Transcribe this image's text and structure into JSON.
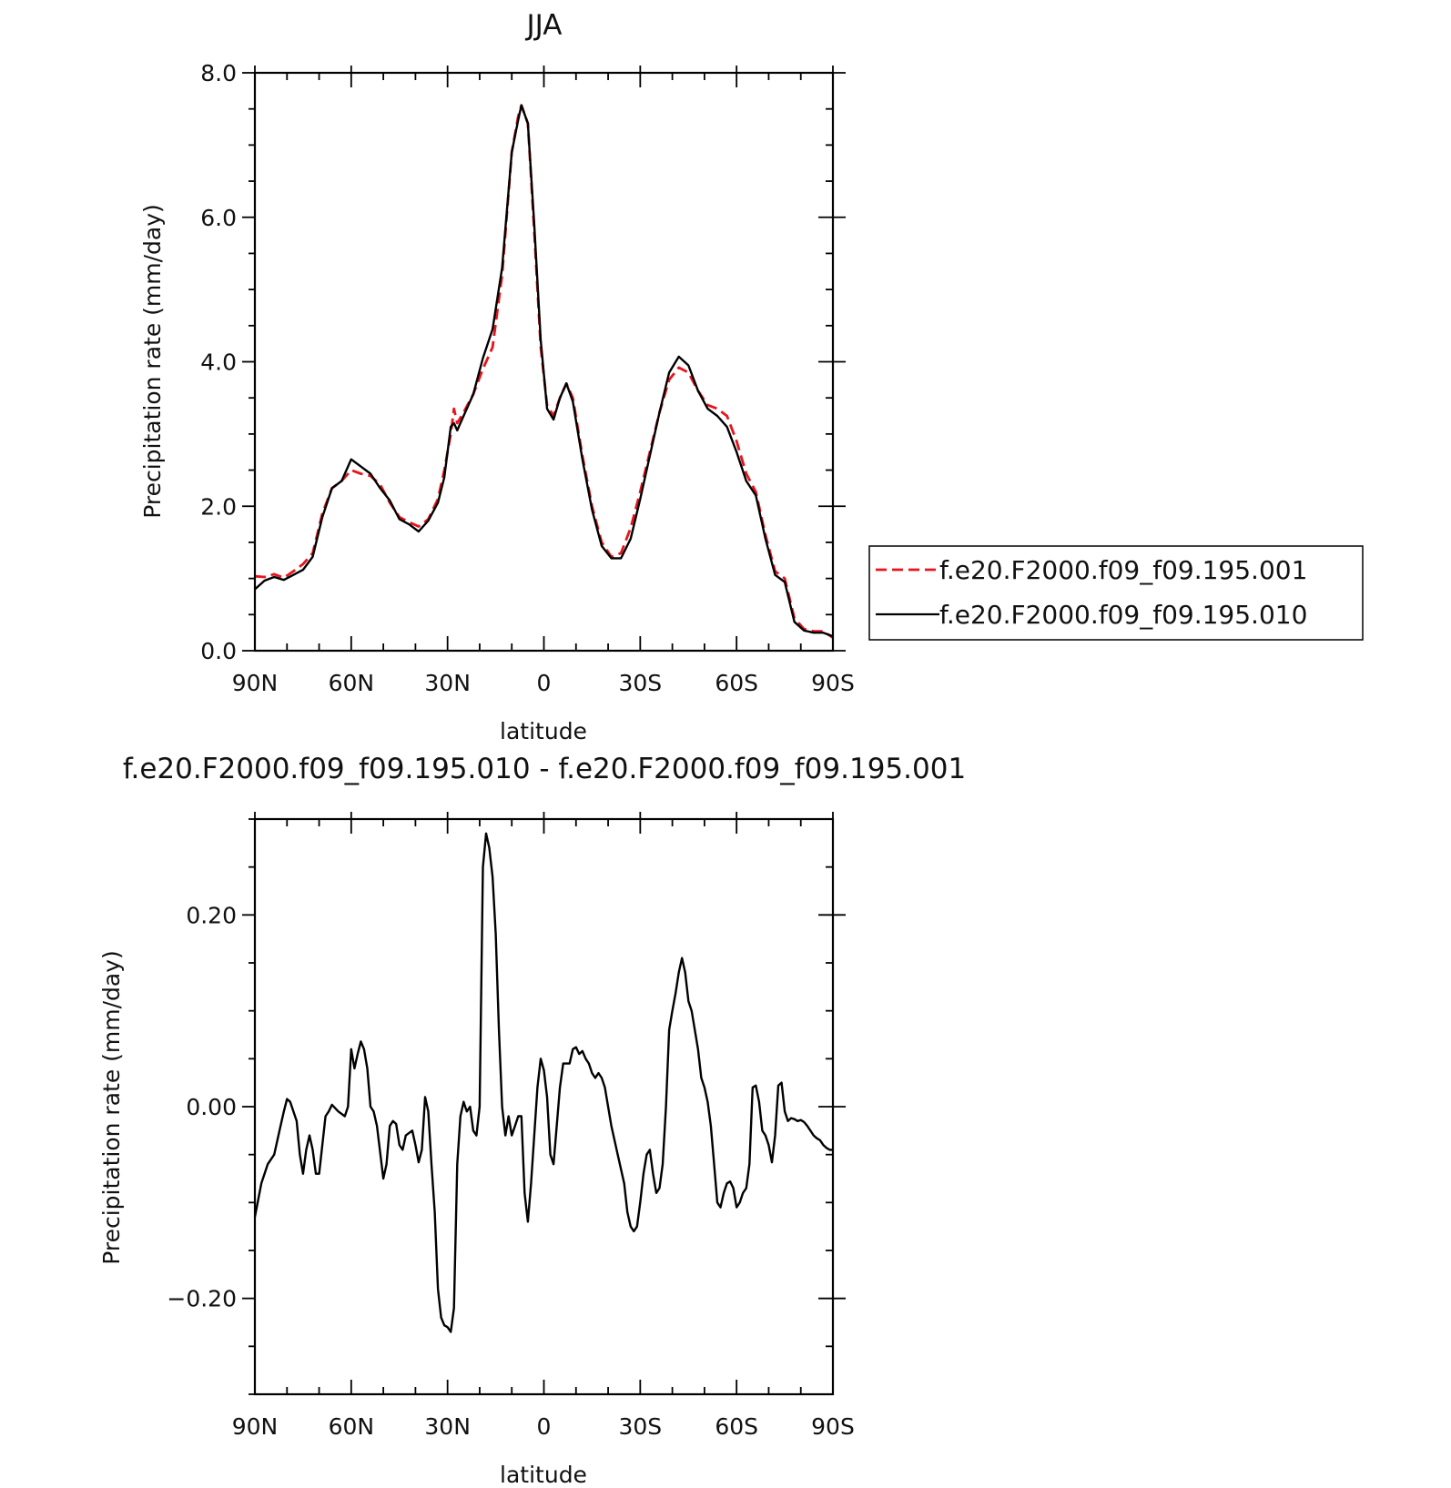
{
  "chart_data": [
    {
      "type": "line",
      "title": "JJA",
      "xlabel": "latitude",
      "ylabel": "Precipitation rate (mm/day)",
      "xlim": [
        90,
        -90
      ],
      "ylim": [
        0,
        8
      ],
      "x_ticks": [
        90,
        60,
        30,
        0,
        -30,
        -60,
        -90
      ],
      "x_tick_labels": [
        "90N",
        "60N",
        "30N",
        "0",
        "30S",
        "60S",
        "90S"
      ],
      "y_ticks": [
        0,
        2,
        4,
        6,
        8
      ],
      "y_tick_labels": [
        "0.0",
        "2.0",
        "4.0",
        "6.0",
        "8.0"
      ],
      "grid": false,
      "legend_position": "outside-right",
      "series": [
        {
          "name": "f.e20.F2000.f09_f09.195.001",
          "color": "#e8141c",
          "dash": "dashed",
          "x": [
            90,
            87,
            84,
            81,
            78,
            75,
            72,
            69,
            66,
            63,
            60,
            57,
            54,
            51,
            48,
            45,
            42,
            39,
            36,
            33,
            31,
            29,
            28,
            27,
            25,
            22,
            19,
            16,
            13,
            10,
            8,
            7,
            5,
            3,
            1,
            -1,
            -3,
            -5,
            -7,
            -9,
            -12,
            -15,
            -18,
            -21,
            -24,
            -27,
            -30,
            -33,
            -36,
            -39,
            -42,
            -45,
            -48,
            -51,
            -54,
            -57,
            -60,
            -63,
            -66,
            -69,
            -72,
            -75,
            -78,
            -81,
            -84,
            -87,
            -90
          ],
          "y": [
            1.03,
            1.02,
            1.06,
            1.01,
            1.1,
            1.2,
            1.35,
            1.9,
            2.25,
            2.35,
            2.5,
            2.45,
            2.42,
            2.3,
            2.05,
            1.85,
            1.78,
            1.72,
            1.82,
            2.1,
            2.5,
            3.0,
            3.35,
            3.15,
            3.3,
            3.55,
            3.9,
            4.2,
            5.2,
            6.9,
            7.4,
            7.55,
            7.3,
            5.8,
            4.2,
            3.4,
            3.25,
            3.5,
            3.7,
            3.5,
            2.7,
            2.0,
            1.5,
            1.3,
            1.35,
            1.7,
            2.2,
            2.75,
            3.3,
            3.75,
            3.92,
            3.85,
            3.6,
            3.4,
            3.35,
            3.25,
            2.9,
            2.45,
            2.2,
            1.6,
            1.1,
            1.0,
            0.45,
            0.3,
            0.27,
            0.27,
            0.18
          ]
        },
        {
          "name": "f.e20.F2000.f09_f09.195.010",
          "color": "#000000",
          "dash": "solid",
          "x": [
            90,
            87,
            84,
            81,
            78,
            75,
            72,
            69,
            66,
            63,
            60,
            57,
            54,
            51,
            48,
            45,
            42,
            39,
            36,
            33,
            31,
            29,
            28,
            27,
            25,
            22,
            19,
            16,
            13,
            10,
            8,
            7,
            5,
            3,
            1,
            -1,
            -3,
            -5,
            -7,
            -9,
            -12,
            -15,
            -18,
            -21,
            -24,
            -27,
            -30,
            -33,
            -36,
            -39,
            -42,
            -45,
            -48,
            -51,
            -54,
            -57,
            -60,
            -63,
            -66,
            -69,
            -72,
            -75,
            -78,
            -81,
            -84,
            -87,
            -90
          ],
          "y": [
            0.85,
            0.97,
            1.02,
            0.98,
            1.05,
            1.12,
            1.3,
            1.85,
            2.25,
            2.35,
            2.65,
            2.55,
            2.45,
            2.25,
            2.08,
            1.82,
            1.75,
            1.65,
            1.8,
            2.05,
            2.4,
            3.1,
            3.15,
            3.05,
            3.25,
            3.55,
            4.05,
            4.45,
            5.3,
            6.9,
            7.35,
            7.55,
            7.3,
            5.9,
            4.3,
            3.35,
            3.2,
            3.5,
            3.7,
            3.45,
            2.65,
            1.95,
            1.45,
            1.28,
            1.28,
            1.55,
            2.1,
            2.7,
            3.3,
            3.85,
            4.07,
            3.95,
            3.6,
            3.35,
            3.25,
            3.1,
            2.75,
            2.35,
            2.15,
            1.55,
            1.05,
            0.95,
            0.4,
            0.28,
            0.25,
            0.25,
            0.2
          ]
        }
      ]
    },
    {
      "type": "line",
      "title": "f.e20.F2000.f09_f09.195.010 - f.e20.F2000.f09_f09.195.001",
      "xlabel": "latitude",
      "ylabel": "Precipitation rate (mm/day)",
      "xlim": [
        90,
        -90
      ],
      "ylim": [
        -0.3,
        0.3
      ],
      "x_ticks": [
        90,
        60,
        30,
        0,
        -30,
        -60,
        -90
      ],
      "x_tick_labels": [
        "90N",
        "60N",
        "30N",
        "0",
        "30S",
        "60S",
        "90S"
      ],
      "y_ticks": [
        -0.2,
        0.0,
        0.2
      ],
      "y_tick_labels": [
        "−0.20",
        "0.00",
        "0.20"
      ],
      "grid": false,
      "series": [
        {
          "color": "#000000",
          "dash": "solid",
          "x": [
            90,
            88,
            86,
            84,
            82,
            81,
            80,
            79,
            77,
            76,
            75,
            74,
            73,
            72,
            71,
            70,
            68,
            67,
            66,
            64,
            62,
            61,
            60,
            59,
            58,
            57,
            56,
            55,
            54,
            53,
            52,
            50,
            49,
            48,
            47,
            46,
            45,
            44,
            43,
            41,
            40,
            39,
            38,
            37,
            36,
            35,
            34,
            33,
            32,
            31,
            30,
            29,
            28,
            27,
            26,
            25,
            24,
            23,
            22,
            21,
            20,
            19,
            18,
            17,
            16,
            15,
            14,
            13,
            12,
            11,
            10,
            9,
            8,
            7,
            6,
            5,
            4,
            3,
            2,
            1,
            0,
            -1,
            -2,
            -3,
            -4,
            -5,
            -6,
            -7,
            -8,
            -9,
            -10,
            -11,
            -12,
            -13,
            -14,
            -15,
            -16,
            -17,
            -18,
            -19,
            -21,
            -23,
            -25,
            -26,
            -27,
            -28,
            -29,
            -30,
            -31,
            -32,
            -33,
            -34,
            -35,
            -36,
            -37,
            -38,
            -39,
            -40,
            -41,
            -42,
            -43,
            -44,
            -45,
            -46,
            -47,
            -48,
            -49,
            -50,
            -51,
            -52,
            -53,
            -54,
            -55,
            -56,
            -57,
            -58,
            -59,
            -60,
            -61,
            -62,
            -63,
            -64,
            -65,
            -66,
            -67,
            -68,
            -69,
            -70,
            -71,
            -72,
            -73,
            -74,
            -75,
            -76,
            -77,
            -78,
            -79,
            -80,
            -81,
            -82,
            -83,
            -84,
            -85,
            -86,
            -87,
            -88,
            -89,
            -90
          ],
          "y": [
            -0.115,
            -0.08,
            -0.06,
            -0.05,
            -0.02,
            -0.005,
            0.008,
            0.005,
            -0.015,
            -0.05,
            -0.07,
            -0.045,
            -0.03,
            -0.045,
            -0.07,
            -0.07,
            -0.01,
            -0.005,
            0.002,
            -0.005,
            -0.01,
            0.0,
            0.06,
            0.04,
            0.055,
            0.068,
            0.06,
            0.04,
            0.0,
            -0.005,
            -0.02,
            -0.075,
            -0.06,
            -0.02,
            -0.015,
            -0.018,
            -0.04,
            -0.045,
            -0.03,
            -0.025,
            -0.04,
            -0.058,
            -0.045,
            0.01,
            -0.005,
            -0.06,
            -0.11,
            -0.19,
            -0.22,
            -0.228,
            -0.23,
            -0.235,
            -0.21,
            -0.06,
            -0.01,
            0.005,
            -0.005,
            0.0,
            -0.025,
            -0.03,
            0.0,
            0.25,
            0.285,
            0.27,
            0.24,
            0.18,
            0.08,
            0.0,
            -0.03,
            -0.01,
            -0.03,
            -0.02,
            -0.01,
            -0.01,
            -0.09,
            -0.12,
            -0.08,
            -0.03,
            0.02,
            0.05,
            0.038,
            0.01,
            -0.05,
            -0.06,
            -0.02,
            0.02,
            0.045,
            0.045,
            0.045,
            0.06,
            0.062,
            0.055,
            0.058,
            0.05,
            0.045,
            0.035,
            0.03,
            0.035,
            0.03,
            0.02,
            -0.02,
            -0.05,
            -0.08,
            -0.11,
            -0.125,
            -0.13,
            -0.125,
            -0.1,
            -0.07,
            -0.05,
            -0.045,
            -0.07,
            -0.09,
            -0.085,
            -0.06,
            0.0,
            0.08,
            0.1,
            0.118,
            0.14,
            0.155,
            0.14,
            0.11,
            0.1,
            0.08,
            0.06,
            0.03,
            0.02,
            0.005,
            -0.02,
            -0.06,
            -0.1,
            -0.105,
            -0.09,
            -0.08,
            -0.078,
            -0.085,
            -0.105,
            -0.1,
            -0.09,
            -0.085,
            -0.06,
            0.02,
            0.022,
            0.005,
            -0.025,
            -0.03,
            -0.04,
            -0.058,
            -0.03,
            0.022,
            0.025,
            -0.005,
            -0.015,
            -0.012,
            -0.013,
            -0.015,
            -0.014,
            -0.016,
            -0.02,
            -0.025,
            -0.03,
            -0.033,
            -0.035,
            -0.04,
            -0.043,
            -0.045,
            -0.045
          ]
        }
      ]
    }
  ]
}
